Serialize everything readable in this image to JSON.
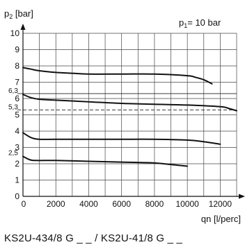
{
  "chart_data": {
    "type": "line",
    "ylabel": {
      "main": "p",
      "sub": "2",
      "rest": " [bar]"
    },
    "xlabel": "qn [l/perc]",
    "annotation": {
      "main": "p",
      "sub": "1",
      "rest": "= 10 bar"
    },
    "caption": "KS2U-434/8 G _ _ / KS2U-41/8 G _ _",
    "xlim": [
      0,
      13000
    ],
    "ylim": [
      0,
      10
    ],
    "x_ticks": [
      {
        "value": 0,
        "label": "0"
      },
      {
        "value": 2000,
        "label": "2000"
      },
      {
        "value": 4000,
        "label": "4000"
      },
      {
        "value": 6000,
        "label": "6000"
      },
      {
        "value": 8000,
        "label": "8000"
      },
      {
        "value": 10000,
        "label": "10000"
      },
      {
        "value": 12000,
        "label": "12000"
      }
    ],
    "y_ticks": [
      {
        "value": 0,
        "label": "0"
      },
      {
        "value": 1,
        "label": "1"
      },
      {
        "value": 2,
        "label": "2"
      },
      {
        "value": 2.5,
        "label": "2,5",
        "small": true
      },
      {
        "value": 3,
        "label": "3"
      },
      {
        "value": 4,
        "label": "4"
      },
      {
        "value": 5,
        "label": "5"
      },
      {
        "value": 5.3,
        "label": "5,3",
        "small": true
      },
      {
        "value": 6,
        "label": "6"
      },
      {
        "value": 6.3,
        "label": "6,3",
        "small": true
      },
      {
        "value": 7,
        "label": "7"
      },
      {
        "value": 8,
        "label": "8"
      },
      {
        "value": 9,
        "label": "9"
      },
      {
        "value": 10,
        "label": "10"
      }
    ],
    "grid": true,
    "reference_lines": [
      {
        "y": 6.3,
        "style": "solid"
      },
      {
        "y": 5.3,
        "style": "dashed"
      }
    ],
    "series": [
      {
        "x": [
          0,
          500,
          1000,
          2000,
          3000,
          4000,
          6000,
          8000,
          10000,
          10500,
          11000,
          11500
        ],
        "y": [
          7.9,
          7.8,
          7.7,
          7.6,
          7.55,
          7.5,
          7.5,
          7.5,
          7.4,
          7.3,
          7.15,
          6.9
        ]
      },
      {
        "x": [
          0,
          500,
          1000,
          2000,
          4000,
          6000,
          8000,
          10000,
          12000,
          12500,
          13000
        ],
        "y": [
          6.25,
          6.05,
          5.95,
          5.9,
          5.8,
          5.7,
          5.65,
          5.6,
          5.5,
          5.4,
          5.25
        ]
      },
      {
        "x": [
          0,
          500,
          1000,
          2000,
          4000,
          6000,
          8000,
          10000,
          11000,
          12000
        ],
        "y": [
          3.9,
          3.6,
          3.5,
          3.5,
          3.5,
          3.5,
          3.5,
          3.45,
          3.35,
          3.2
        ]
      },
      {
        "x": [
          0,
          400,
          800,
          2000,
          4000,
          6000,
          8000,
          9000,
          10000
        ],
        "y": [
          2.45,
          2.25,
          2.2,
          2.2,
          2.15,
          2.1,
          2.05,
          1.95,
          1.85
        ]
      }
    ]
  }
}
